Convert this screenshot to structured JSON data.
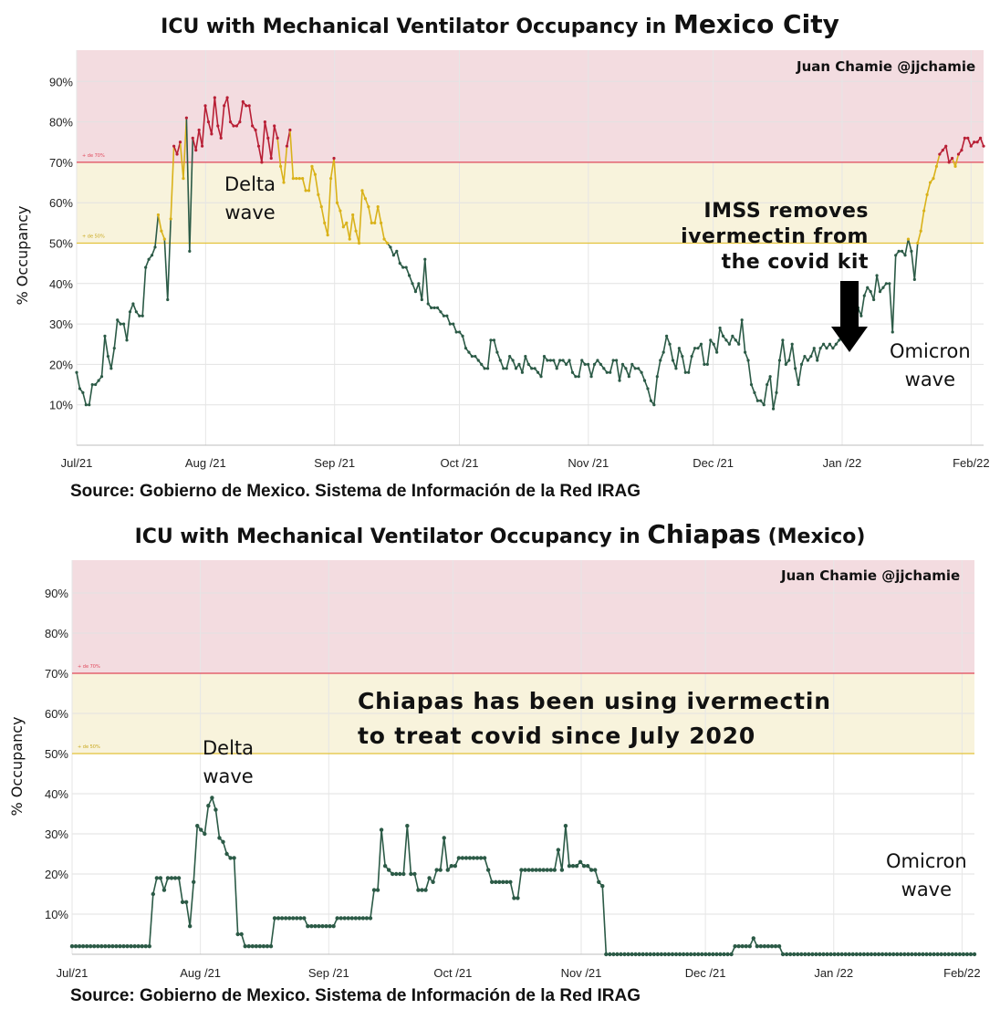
{
  "colors": {
    "red_band": "#f3dce0",
    "yellow_band": "#f8f3dc",
    "line_red": "#b81f35",
    "line_yellow": "#d9b21a",
    "line_green": "#2b5a46",
    "threshold70": "#e0475a",
    "threshold50": "#e3c23a"
  },
  "charts": [
    {
      "id": "top",
      "title_prefix": "ICU with Mechanical Ventilator Occupancy in ",
      "title_place": "Mexico City",
      "title_suffix": "",
      "credit": "Juan Chamie @jjchamie",
      "source": "Source: Gobierno de Mexico. Sistema de Información de la Red IRAG",
      "delta_label": "Delta\nwave",
      "omicron_label": "Omicron\nwave",
      "callout": "IMSS removes\nivermectin from\nthe covid kit",
      "arrow_icon": "down-arrow-icon"
    },
    {
      "id": "bottom",
      "title_prefix": "ICU with Mechanical Ventilator Occupancy in ",
      "title_place": "Chiapas",
      "title_suffix": " (Mexico)",
      "credit": "Juan Chamie @jjchamie",
      "source": "Source: Gobierno de Mexico. Sistema de Información de la Red IRAG",
      "delta_label": "Delta\nwave",
      "omicron_label": "Omicron\nwave",
      "callout": "Chiapas has been using ivermectin\nto treat covid since July 2020"
    }
  ],
  "chart_data": [
    {
      "type": "line",
      "title": "ICU with Mechanical Ventilator Occupancy in Mexico City",
      "ylabel": "% Occupancy",
      "ylim": [
        0,
        100
      ],
      "yticks": [
        "10%",
        "20%",
        "30%",
        "40%",
        "50%",
        "60%",
        "70%",
        "80%",
        "90%"
      ],
      "yticks_values": [
        10,
        20,
        30,
        40,
        50,
        60,
        70,
        80,
        90
      ],
      "xticks": [
        "Jul/21",
        "Aug /21",
        "Sep /21",
        "Oct /21",
        "Nov /21",
        "Dec /21",
        "Jan /22",
        "Feb/22"
      ],
      "xticks_day": [
        0,
        31,
        62,
        92,
        123,
        153,
        184,
        215
      ],
      "xlim_days": [
        0,
        218
      ],
      "bands": [
        {
          "from": 70,
          "to": 100,
          "label": "+ de 70%"
        },
        {
          "from": 50,
          "to": 70,
          "label": "+ de 50%"
        }
      ],
      "grid": true,
      "series": [
        {
          "start": "2021-07-01",
          "values": [
            18,
            14,
            13,
            10,
            10,
            15,
            15,
            16,
            17,
            27,
            22,
            19,
            24,
            31,
            30,
            30,
            26,
            33,
            35,
            33,
            32,
            32,
            44,
            46,
            47,
            49,
            57,
            53,
            51,
            36,
            56,
            74,
            72,
            75,
            66,
            81,
            48,
            76,
            73,
            78,
            74,
            84,
            80,
            77,
            86,
            79,
            76,
            84,
            86,
            80,
            79,
            79,
            80,
            85,
            84,
            84,
            79,
            78,
            74,
            70,
            80,
            76,
            71,
            79,
            76,
            69,
            65,
            74,
            78,
            66,
            66,
            66,
            66,
            63,
            63,
            69,
            67,
            62,
            59,
            55,
            52,
            66,
            71,
            60,
            58,
            54,
            55,
            51,
            57,
            53,
            50,
            63,
            61,
            59,
            55,
            55,
            59,
            55,
            51,
            50,
            49,
            47,
            48,
            45,
            44,
            44,
            42,
            40,
            38,
            40,
            36,
            46,
            35,
            34,
            34,
            34,
            33,
            32,
            32,
            30,
            30,
            28,
            28,
            27,
            24,
            23,
            22,
            22,
            21,
            20,
            19,
            19,
            26,
            26,
            23,
            21,
            19,
            19,
            22,
            21,
            19,
            20,
            18,
            22,
            20,
            19,
            19,
            18,
            17,
            22,
            21,
            21,
            21,
            19,
            21,
            21,
            20,
            21,
            18,
            17,
            17,
            21,
            20,
            20,
            17,
            20,
            21,
            20,
            19,
            18,
            18,
            21,
            21,
            16,
            20,
            19,
            17,
            20,
            19,
            19,
            18,
            16,
            14,
            11,
            10,
            17,
            21,
            23,
            27,
            25,
            21,
            19,
            24,
            22,
            18,
            18,
            22,
            24,
            24,
            25,
            20,
            20,
            26,
            25,
            23,
            29,
            27,
            26,
            25,
            27,
            26,
            25,
            31,
            23,
            21,
            15,
            13,
            11,
            11,
            10,
            15,
            17,
            9,
            13,
            21,
            26,
            20,
            21,
            25,
            19,
            15,
            20,
            22,
            21,
            22,
            24,
            21,
            24,
            25,
            24,
            25,
            24,
            25,
            26,
            27,
            26,
            27,
            26,
            33,
            34,
            32,
            37,
            39,
            38,
            36,
            42,
            38,
            39,
            40,
            40,
            28,
            47,
            48,
            48,
            47,
            51,
            48,
            41,
            50,
            53,
            58,
            62,
            65,
            66,
            69,
            72,
            73,
            74,
            70,
            71,
            69,
            72,
            73,
            76,
            76,
            74,
            75,
            75,
            76,
            74
          ]
        }
      ],
      "annotations": [
        "Delta wave",
        "IMSS removes ivermectin from the covid kit",
        "Omicron wave",
        "Juan Chamie @jjchamie"
      ]
    },
    {
      "type": "line",
      "title": "ICU with Mechanical Ventilator Occupancy in Chiapas (Mexico)",
      "ylabel": "% Occupancy",
      "ylim": [
        0,
        100
      ],
      "yticks": [
        "10%",
        "20%",
        "30%",
        "40%",
        "50%",
        "60%",
        "70%",
        "80%",
        "90%"
      ],
      "yticks_values": [
        10,
        20,
        30,
        40,
        50,
        60,
        70,
        80,
        90
      ],
      "xticks": [
        "Jul/21",
        "Aug /21",
        "Sep /21",
        "Oct /21",
        "Nov /21",
        "Dec /21",
        "Jan /22",
        "Feb/22"
      ],
      "xticks_day": [
        0,
        31,
        62,
        92,
        123,
        153,
        184,
        215
      ],
      "xlim_days": [
        0,
        218
      ],
      "bands": [
        {
          "from": 70,
          "to": 100,
          "label": "+ de 70%"
        },
        {
          "from": 50,
          "to": 70,
          "label": "+ de 50%"
        }
      ],
      "grid": true,
      "series": [
        {
          "start": "2021-07-01",
          "values": [
            2,
            2,
            2,
            2,
            2,
            2,
            2,
            2,
            2,
            2,
            2,
            2,
            2,
            2,
            2,
            2,
            2,
            2,
            2,
            2,
            2,
            2,
            15,
            19,
            19,
            16,
            19,
            19,
            19,
            19,
            13,
            13,
            7,
            18,
            32,
            31,
            30,
            37,
            39,
            36,
            29,
            28,
            25,
            24,
            24,
            5,
            5,
            2,
            2,
            2,
            2,
            2,
            2,
            2,
            2,
            9,
            9,
            9,
            9,
            9,
            9,
            9,
            9,
            9,
            7,
            7,
            7,
            7,
            7,
            7,
            7,
            7,
            9,
            9,
            9,
            9,
            9,
            9,
            9,
            9,
            9,
            9,
            16,
            16,
            31,
            22,
            21,
            20,
            20,
            20,
            20,
            32,
            20,
            20,
            16,
            16,
            16,
            19,
            18,
            21,
            21,
            29,
            21,
            22,
            22,
            24,
            24,
            24,
            24,
            24,
            24,
            24,
            24,
            21,
            18,
            18,
            18,
            18,
            18,
            18,
            14,
            14,
            21,
            21,
            21,
            21,
            21,
            21,
            21,
            21,
            21,
            21,
            26,
            21,
            32,
            22,
            22,
            22,
            23,
            22,
            22,
            21,
            21,
            18,
            17,
            0,
            0,
            0,
            0,
            0,
            0,
            0,
            0,
            0,
            0,
            0,
            0,
            0,
            0,
            0,
            0,
            0,
            0,
            0,
            0,
            0,
            0,
            0,
            0,
            0,
            0,
            0,
            0,
            0,
            0,
            0,
            0,
            0,
            0,
            0,
            2,
            2,
            2,
            2,
            2,
            4,
            2,
            2,
            2,
            2,
            2,
            2,
            2,
            0,
            0,
            0,
            0,
            0,
            0,
            0,
            0,
            0,
            0,
            0,
            0,
            0,
            0,
            0,
            0,
            0,
            0,
            0,
            0,
            0,
            0,
            0,
            0,
            0,
            0,
            0,
            0,
            0,
            0,
            0,
            0,
            0,
            0,
            0,
            0,
            0,
            0,
            0,
            0,
            0,
            0,
            0,
            0,
            0,
            0,
            0,
            0,
            0,
            0,
            0,
            0,
            0
          ]
        }
      ],
      "annotations": [
        "Delta wave",
        "Chiapas has been using ivermectin to treat covid since July 2020",
        "Omicron wave",
        "Juan Chamie @jjchamie"
      ]
    }
  ]
}
